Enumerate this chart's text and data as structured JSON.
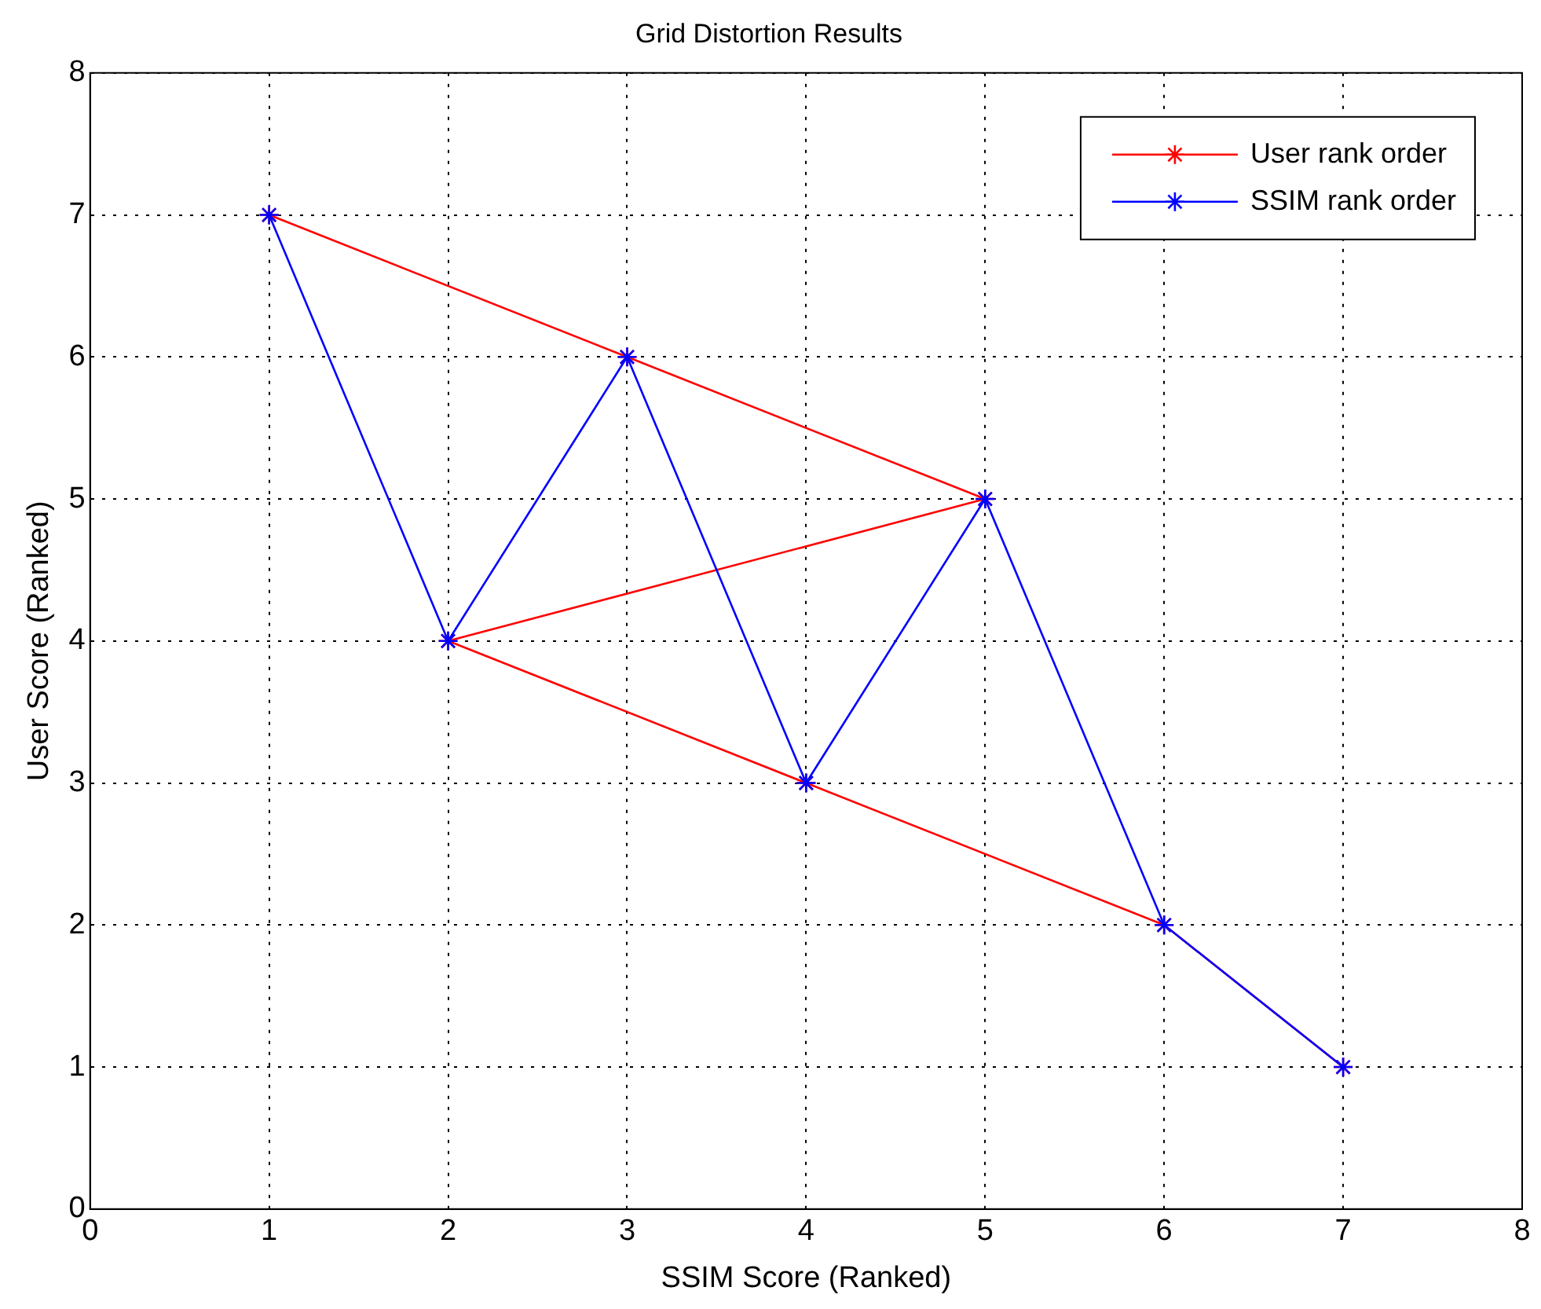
{
  "chart_data": {
    "type": "line",
    "title": "Grid Distortion Results",
    "xlabel": "SSIM Score (Ranked)",
    "ylabel": "User Score (Ranked)",
    "series": [
      {
        "name": "User rank order",
        "color": "#ff0000",
        "x": [
          1,
          3,
          5,
          2,
          4,
          6,
          7
        ],
        "values": [
          7,
          6,
          5,
          4,
          3,
          2,
          1
        ]
      },
      {
        "name": "SSIM rank order",
        "color": "#0000ff",
        "x": [
          1,
          2,
          3,
          4,
          5,
          6,
          7
        ],
        "values": [
          7,
          4,
          6,
          3,
          5,
          2,
          1
        ]
      }
    ],
    "xlim": [
      0,
      8
    ],
    "ylim": [
      0,
      8
    ],
    "xticks": [
      0,
      1,
      2,
      3,
      4,
      5,
      6,
      7,
      8
    ],
    "yticks": [
      0,
      1,
      2,
      3,
      4,
      5,
      6,
      7,
      8
    ],
    "grid": true,
    "legend": "top right",
    "marker": "cross",
    "line_style": "solid"
  }
}
